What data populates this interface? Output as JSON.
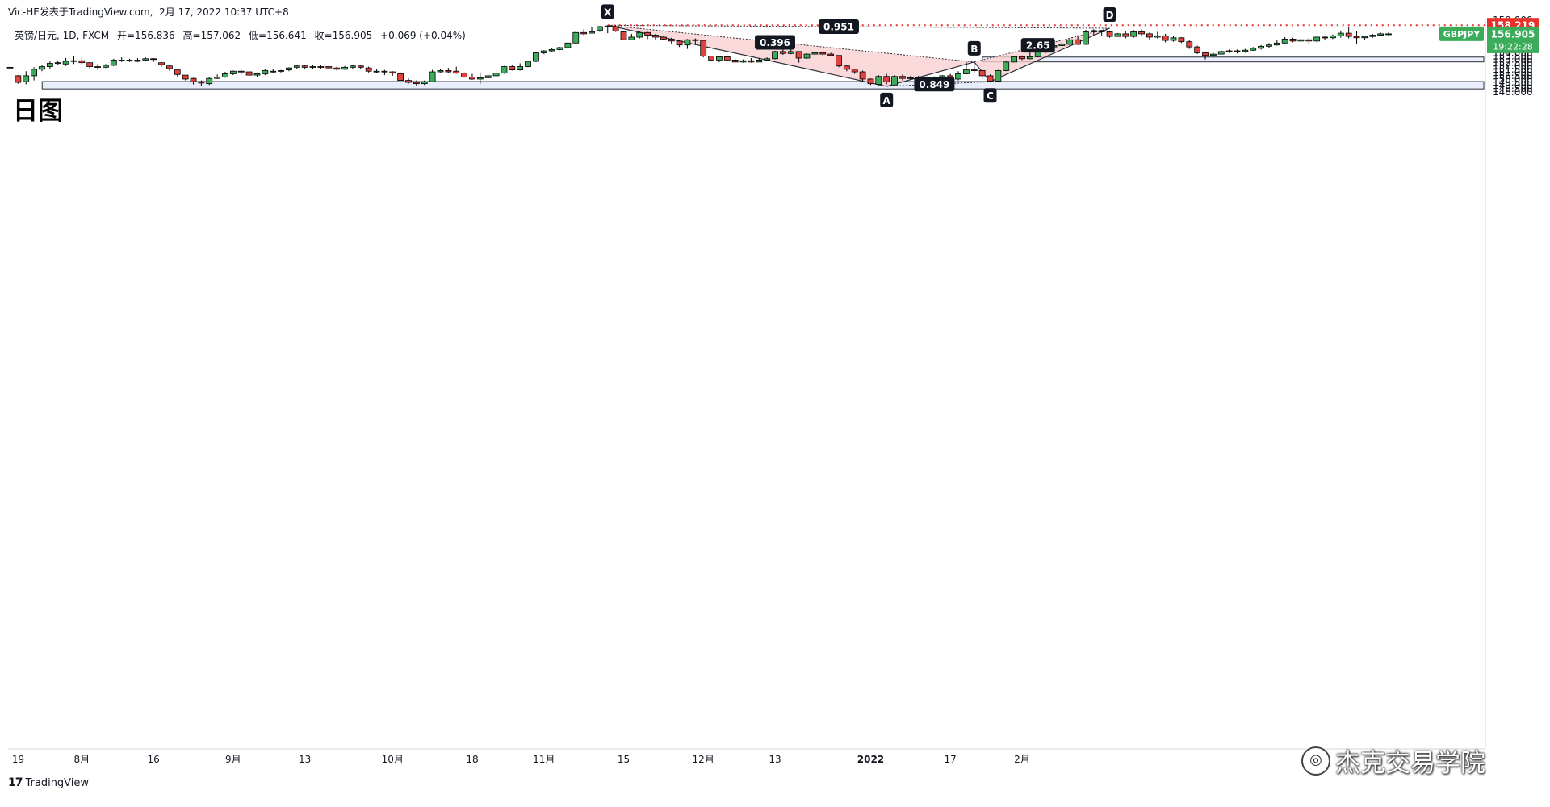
{
  "header": {
    "publisher": "Vic-HE发表于TradingView.com",
    "datetime": "2月 17, 2022 10:37 UTC+8",
    "symbol_line": "英镑/日元, 1D, FXCM",
    "open_label": "开=156.836",
    "high_label": "高=157.062",
    "low_label": "低=156.641",
    "close_label": "收=156.905",
    "change_label": "+0.069 (+0.04%)"
  },
  "title": "日图",
  "currency": "JPY",
  "footer": {
    "tv_mark": "17",
    "tv_name": "TradingView",
    "brand": "杰克交易学院"
  },
  "colors": {
    "up": "#3cac5b",
    "down": "#e0423f",
    "zone_fill": "#e8eefc",
    "harmonic_fill": "#f8d0d0",
    "resistance_line": "#e8302a",
    "price_tag": "#3cac5b"
  },
  "chart_data": {
    "type": "candlestick",
    "symbol": "GBPJPY",
    "timeframe": "1D",
    "ylim": [
      47.85,
      159.35
    ],
    "y_ticks": [
      "159.000",
      "158.500",
      "158.000",
      "157.500",
      "157.000",
      "156.500",
      "156.000",
      "155.500",
      "155.000",
      "154.500",
      "154.000",
      "153.500",
      "153.000",
      "152.500",
      "152.000",
      "151.500",
      "151.000",
      "150.500",
      "150.000",
      "149.500",
      "149.000",
      "148.500",
      "148.000"
    ],
    "x_ticks": [
      "19",
      "8月",
      "16",
      "9月",
      "13",
      "10月",
      "18",
      "11月",
      "15",
      "12月",
      "13",
      "2022",
      "17",
      "2月"
    ],
    "candles": [
      [
        151.8,
        151.7,
        151.9,
        149.4
      ],
      [
        150.5,
        149.5,
        150.6,
        149.3
      ],
      [
        149.6,
        150.5,
        151.2,
        149.2
      ],
      [
        150.5,
        151.5,
        151.8,
        149.8
      ],
      [
        151.5,
        151.9,
        152.1,
        151.2
      ],
      [
        151.9,
        152.4,
        152.7,
        151.6
      ],
      [
        152.4,
        152.5,
        152.8,
        152.1
      ],
      [
        152.3,
        152.7,
        153.2,
        152.0
      ],
      [
        152.7,
        152.8,
        153.5,
        152.3
      ],
      [
        152.8,
        152.5,
        153.3,
        152.2
      ],
      [
        152.5,
        151.9,
        152.6,
        151.5
      ],
      [
        151.9,
        151.8,
        152.3,
        151.4
      ],
      [
        151.8,
        152.1,
        152.3,
        151.7
      ],
      [
        152.1,
        152.9,
        153.1,
        152.0
      ],
      [
        152.9,
        152.9,
        153.3,
        152.6
      ],
      [
        152.9,
        152.9,
        153.1,
        152.6
      ],
      [
        152.7,
        152.9,
        153.2,
        152.6
      ],
      [
        152.9,
        153.1,
        153.3,
        152.7
      ],
      [
        153.1,
        153.0,
        153.2,
        152.6
      ],
      [
        152.5,
        152.2,
        152.6,
        151.9
      ],
      [
        152.0,
        151.6,
        152.1,
        151.3
      ],
      [
        151.4,
        150.7,
        151.4,
        150.4
      ],
      [
        150.6,
        150.0,
        150.6,
        149.8
      ],
      [
        150.1,
        149.6,
        150.2,
        149.2
      ],
      [
        149.6,
        149.4,
        149.8,
        149.0
      ],
      [
        149.3,
        150.1,
        150.3,
        149.1
      ],
      [
        150.1,
        150.3,
        150.7,
        150.0
      ],
      [
        150.3,
        150.8,
        151.1,
        150.2
      ],
      [
        150.8,
        151.2,
        151.3,
        150.6
      ],
      [
        151.2,
        151.2,
        151.4,
        150.7
      ],
      [
        151.1,
        150.6,
        151.3,
        150.4
      ],
      [
        150.6,
        150.8,
        151.0,
        150.3
      ],
      [
        150.8,
        151.3,
        151.5,
        150.6
      ],
      [
        151.1,
        151.2,
        151.5,
        150.9
      ],
      [
        151.2,
        151.3,
        151.4,
        151.0
      ],
      [
        151.4,
        151.7,
        151.8,
        151.2
      ],
      [
        151.8,
        152.0,
        152.2,
        151.6
      ],
      [
        152.0,
        151.8,
        152.2,
        151.6
      ],
      [
        151.8,
        151.9,
        152.1,
        151.5
      ],
      [
        151.9,
        151.8,
        152.1,
        151.6
      ],
      [
        151.9,
        151.7,
        152.0,
        151.5
      ],
      [
        151.7,
        151.5,
        151.9,
        151.3
      ],
      [
        151.5,
        151.8,
        152.0,
        151.4
      ],
      [
        151.8,
        152.0,
        152.1,
        151.6
      ],
      [
        152.0,
        151.8,
        152.1,
        151.6
      ],
      [
        151.7,
        151.2,
        151.9,
        151.0
      ],
      [
        151.2,
        151.2,
        151.5,
        150.9
      ],
      [
        151.2,
        151.1,
        151.4,
        150.6
      ],
      [
        151.1,
        150.9,
        151.2,
        150.5
      ],
      [
        150.8,
        149.8,
        151.0,
        149.8
      ],
      [
        149.8,
        149.5,
        150.1,
        149.3
      ],
      [
        149.5,
        149.3,
        149.8,
        149.0
      ],
      [
        149.3,
        149.6,
        149.8,
        149.1
      ],
      [
        149.6,
        151.1,
        151.4,
        149.5
      ],
      [
        151.1,
        151.3,
        151.5,
        151.0
      ],
      [
        151.3,
        151.1,
        151.7,
        150.9
      ],
      [
        151.2,
        150.9,
        151.9,
        150.8
      ],
      [
        150.9,
        150.3,
        151.0,
        150.2
      ],
      [
        150.3,
        150.0,
        150.8,
        149.9
      ],
      [
        150.0,
        150.2,
        151.0,
        149.3
      ],
      [
        150.2,
        150.5,
        150.6,
        150.1
      ],
      [
        150.5,
        150.9,
        151.3,
        150.3
      ],
      [
        150.9,
        151.9,
        152.0,
        150.8
      ],
      [
        151.9,
        151.4,
        152.1,
        151.3
      ],
      [
        151.4,
        151.9,
        152.4,
        151.3
      ],
      [
        151.9,
        152.7,
        152.8,
        151.8
      ],
      [
        152.7,
        154.0,
        154.1,
        152.6
      ],
      [
        154.0,
        154.3,
        154.4,
        153.8
      ],
      [
        154.3,
        154.5,
        154.8,
        154.1
      ],
      [
        154.5,
        154.8,
        154.9,
        154.4
      ],
      [
        154.8,
        155.5,
        155.6,
        154.6
      ],
      [
        155.5,
        157.1,
        157.3,
        155.4
      ],
      [
        157.1,
        156.9,
        157.6,
        156.7
      ],
      [
        157.0,
        157.2,
        158.0,
        157.0
      ],
      [
        157.4,
        158.0,
        158.1,
        157.2
      ],
      [
        158.0,
        158.1,
        158.2,
        157.0
      ],
      [
        158.0,
        157.3,
        158.2,
        157.2
      ],
      [
        157.2,
        156.0,
        157.3,
        155.9
      ],
      [
        156.0,
        156.4,
        156.9,
        155.9
      ],
      [
        156.4,
        157.1,
        157.3,
        156.2
      ],
      [
        157.1,
        156.7,
        157.2,
        156.1
      ],
      [
        156.7,
        156.4,
        156.9,
        156.0
      ],
      [
        156.4,
        156.1,
        156.6,
        155.9
      ],
      [
        156.1,
        155.8,
        156.3,
        155.4
      ],
      [
        155.8,
        155.2,
        156.0,
        154.9
      ],
      [
        155.2,
        156.0,
        156.1,
        154.6
      ],
      [
        156.0,
        155.9,
        156.2,
        155.2
      ],
      [
        155.9,
        153.5,
        155.9,
        153.3
      ],
      [
        153.5,
        152.9,
        153.5,
        152.7
      ],
      [
        152.9,
        153.4,
        153.5,
        152.6
      ],
      [
        153.4,
        152.9,
        153.5,
        152.7
      ],
      [
        152.9,
        152.6,
        153.1,
        152.5
      ],
      [
        152.6,
        152.8,
        153.0,
        152.5
      ],
      [
        152.8,
        152.6,
        153.2,
        152.5
      ],
      [
        152.6,
        152.9,
        153.2,
        152.6
      ],
      [
        152.9,
        153.1,
        153.3,
        152.8
      ],
      [
        153.1,
        154.2,
        154.3,
        153.0
      ],
      [
        154.2,
        153.9,
        154.6,
        153.7
      ],
      [
        153.9,
        154.2,
        154.7,
        153.8
      ],
      [
        154.2,
        153.2,
        154.2,
        152.5
      ],
      [
        153.2,
        153.8,
        153.9,
        153.1
      ],
      [
        153.8,
        154.0,
        154.2,
        153.7
      ],
      [
        154.0,
        153.8,
        154.1,
        153.6
      ],
      [
        153.8,
        153.6,
        154.0,
        153.5
      ],
      [
        153.6,
        152.0,
        153.6,
        151.8
      ],
      [
        152.0,
        151.5,
        152.2,
        151.2
      ],
      [
        151.5,
        151.1,
        151.6,
        150.8
      ],
      [
        151.1,
        150.0,
        151.3,
        149.6
      ],
      [
        150.0,
        149.3,
        150.1,
        149.1
      ],
      [
        149.2,
        150.4,
        150.6,
        148.9
      ],
      [
        150.4,
        149.6,
        150.8,
        149.2
      ],
      [
        149.1,
        150.4,
        150.6,
        149.0
      ],
      [
        150.4,
        150.1,
        150.7,
        149.8
      ],
      [
        150.1,
        150.2,
        150.5,
        149.9
      ],
      [
        150.2,
        150.3,
        150.5,
        149.8
      ],
      [
        150.3,
        150.0,
        150.4,
        149.7
      ],
      [
        150.0,
        150.1,
        150.4,
        149.8
      ],
      [
        150.1,
        150.5,
        150.6,
        150.0
      ],
      [
        150.5,
        150.0,
        150.8,
        149.8
      ],
      [
        150.0,
        150.8,
        151.2,
        149.8
      ],
      [
        150.8,
        151.4,
        152.6,
        150.7
      ],
      [
        151.4,
        151.3,
        152.2,
        151.0
      ],
      [
        151.3,
        150.5,
        151.4,
        150.0
      ],
      [
        150.5,
        149.7,
        150.7,
        149.6
      ],
      [
        149.7,
        151.3,
        151.4,
        149.6
      ],
      [
        151.3,
        152.6,
        152.7,
        151.2
      ],
      [
        152.6,
        153.4,
        153.5,
        152.6
      ],
      [
        153.4,
        153.1,
        153.6,
        152.9
      ],
      [
        153.1,
        153.4,
        154.1,
        153.0
      ],
      [
        153.4,
        154.1,
        154.5,
        153.3
      ],
      [
        154.1,
        154.9,
        155.0,
        154.0
      ],
      [
        154.9,
        155.1,
        155.3,
        154.8
      ],
      [
        155.1,
        155.3,
        155.6,
        155.0
      ],
      [
        155.3,
        156.0,
        156.2,
        155.0
      ],
      [
        156.0,
        155.3,
        156.7,
        155.2
      ],
      [
        155.3,
        157.2,
        157.5,
        155.2
      ],
      [
        157.2,
        157.4,
        157.6,
        156.7
      ],
      [
        157.4,
        157.2,
        157.5,
        156.6
      ],
      [
        157.2,
        156.5,
        157.4,
        156.3
      ],
      [
        156.5,
        156.9,
        157.0,
        156.5
      ],
      [
        156.9,
        156.5,
        157.3,
        156.2
      ],
      [
        156.5,
        157.2,
        157.5,
        156.3
      ],
      [
        157.2,
        156.9,
        157.6,
        156.5
      ],
      [
        156.9,
        156.4,
        157.1,
        155.9
      ],
      [
        156.4,
        156.6,
        157.2,
        156.2
      ],
      [
        156.6,
        155.9,
        156.9,
        155.6
      ],
      [
        155.9,
        156.3,
        156.6,
        155.7
      ],
      [
        156.3,
        155.7,
        156.4,
        155.5
      ],
      [
        155.7,
        154.9,
        155.9,
        154.6
      ],
      [
        154.9,
        154.0,
        155.1,
        153.8
      ],
      [
        154.0,
        153.6,
        154.2,
        153.0
      ],
      [
        153.6,
        153.8,
        154.0,
        153.3
      ],
      [
        153.8,
        154.2,
        154.4,
        153.7
      ],
      [
        154.2,
        154.3,
        154.5,
        154.0
      ],
      [
        154.3,
        154.2,
        154.5,
        153.9
      ],
      [
        154.2,
        154.4,
        154.6,
        154.0
      ],
      [
        154.4,
        154.7,
        154.9,
        154.3
      ],
      [
        154.7,
        155.0,
        155.2,
        154.5
      ],
      [
        155.0,
        155.2,
        155.5,
        154.8
      ],
      [
        155.2,
        155.5,
        155.9,
        155.1
      ],
      [
        155.5,
        156.1,
        156.4,
        155.4
      ],
      [
        156.1,
        155.8,
        156.3,
        155.6
      ],
      [
        155.8,
        156.0,
        156.2,
        155.6
      ],
      [
        156.0,
        155.8,
        156.3,
        155.4
      ],
      [
        155.8,
        156.4,
        156.5,
        155.6
      ],
      [
        156.4,
        156.3,
        156.6,
        156.0
      ],
      [
        156.3,
        156.6,
        156.8,
        156.1
      ],
      [
        156.6,
        157.0,
        157.4,
        156.3
      ],
      [
        157.0,
        156.5,
        157.9,
        156.2
      ],
      [
        156.5,
        156.3,
        157.3,
        155.3
      ],
      [
        156.3,
        156.5,
        156.6,
        156.0
      ],
      [
        156.5,
        156.7,
        156.9,
        156.3
      ],
      [
        156.7,
        156.9,
        157.1,
        156.6
      ],
      [
        156.8,
        156.9,
        157.1,
        156.6
      ]
    ],
    "zones": [
      {
        "from_index": 2,
        "to_index": 174,
        "top": 149.62,
        "bottom": 148.5
      },
      {
        "from_index": 120,
        "to_index": 174,
        "top": 153.35,
        "bottom": 152.62
      }
    ],
    "harmonic": {
      "points": [
        {
          "label": "X",
          "index": 75,
          "price": 158.2
        },
        {
          "label": "A",
          "index": 110,
          "price": 148.9
        },
        {
          "label": "B",
          "index": 121,
          "price": 152.6
        },
        {
          "label": "C",
          "index": 123,
          "price": 149.6
        },
        {
          "label": "D",
          "index": 138,
          "price": 157.75
        }
      ],
      "ratios": [
        {
          "label": "0.396",
          "index": 96,
          "price": 155.6
        },
        {
          "label": "0.951",
          "index": 104,
          "price": 158.0
        },
        {
          "label": "0.849",
          "index": 116,
          "price": 149.22
        },
        {
          "label": "2.65",
          "index": 129,
          "price": 155.15
        }
      ]
    },
    "resistance": {
      "price": 158.219,
      "label": "158.219"
    },
    "last_price": {
      "symbol": "GBPJPY",
      "price": "156.905",
      "countdown": "19:22:28",
      "value": 156.905
    }
  }
}
